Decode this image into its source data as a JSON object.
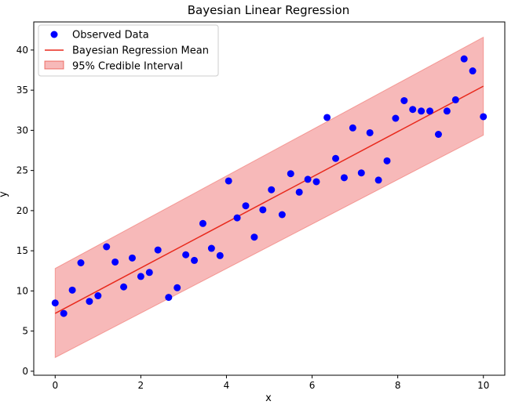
{
  "chart_data": {
    "type": "scatter",
    "title": "Bayesian Linear Regression",
    "xlabel": "x",
    "ylabel": "y",
    "xlim": [
      -0.5,
      10.5
    ],
    "ylim": [
      -0.5,
      43.5
    ],
    "xticks": [
      0,
      2,
      4,
      6,
      8,
      10
    ],
    "yticks": [
      0,
      5,
      10,
      15,
      20,
      25,
      30,
      35,
      40
    ],
    "legend_position": "top-left",
    "colors": {
      "points": "#0000ff",
      "mean_line": "#e8291c",
      "interval_fill": "#f08080",
      "interval_edge": "#e8291c"
    },
    "series": [
      {
        "name": "Observed Data",
        "kind": "scatter",
        "x": [
          0.0,
          0.2,
          0.4,
          0.6,
          0.8,
          1.0,
          1.2,
          1.4,
          1.6,
          1.8,
          2.0,
          2.2,
          2.4,
          2.65,
          2.85,
          3.05,
          3.25,
          3.45,
          3.65,
          3.85,
          4.05,
          4.25,
          4.45,
          4.65,
          4.85,
          5.05,
          5.3,
          5.5,
          5.7,
          5.9,
          6.1,
          6.35,
          6.55,
          6.75,
          6.95,
          7.15,
          7.35,
          7.55,
          7.75,
          7.95,
          8.15,
          8.35,
          8.55,
          8.75,
          8.95,
          9.15,
          9.35,
          9.55,
          9.75,
          10.0
        ],
        "y": [
          8.5,
          7.2,
          10.1,
          13.5,
          8.7,
          9.4,
          15.5,
          13.6,
          10.5,
          14.1,
          11.8,
          12.3,
          15.1,
          9.2,
          10.4,
          14.5,
          13.8,
          18.4,
          15.3,
          14.4,
          23.7,
          19.1,
          20.6,
          16.7,
          20.1,
          22.6,
          19.5,
          24.6,
          22.3,
          23.9,
          23.6,
          31.6,
          26.5,
          24.1,
          30.3,
          24.7,
          29.7,
          23.8,
          26.2,
          31.5,
          33.7,
          32.6,
          32.4,
          32.4,
          29.5,
          32.4,
          33.8,
          38.9,
          37.4,
          31.7
        ]
      },
      {
        "name": "Bayesian Regression Mean",
        "kind": "line",
        "x": [
          0,
          10
        ],
        "y": [
          7.2,
          35.5
        ]
      },
      {
        "name": "95% Credible Interval",
        "kind": "band",
        "x": [
          0,
          10
        ],
        "lower": [
          1.7,
          29.4
        ],
        "upper": [
          12.8,
          41.6
        ]
      }
    ]
  }
}
